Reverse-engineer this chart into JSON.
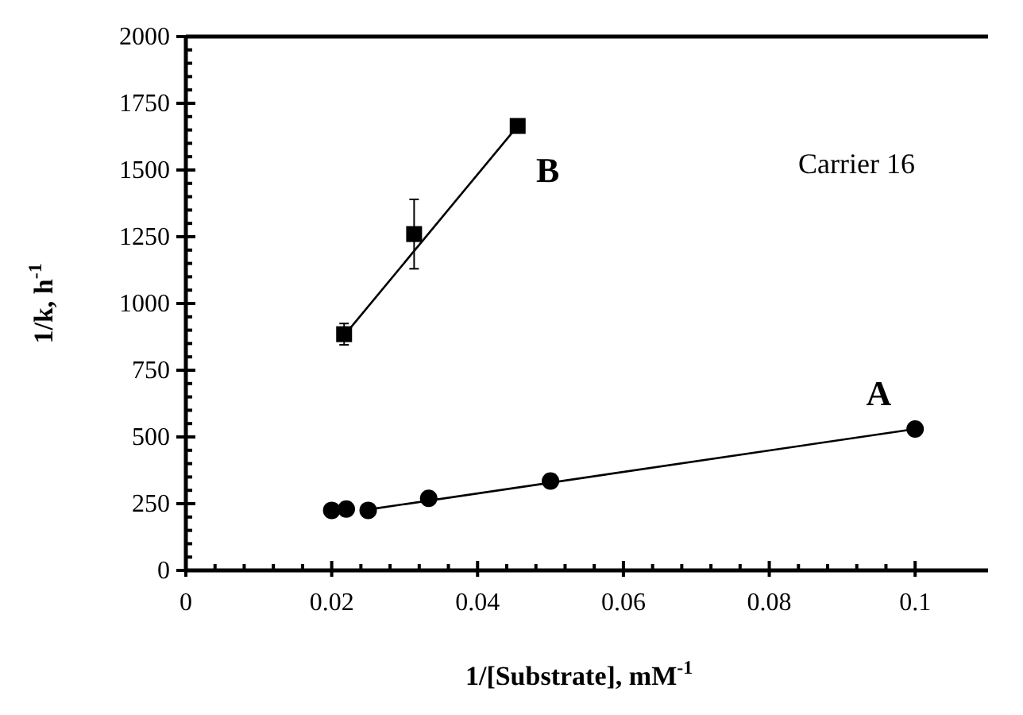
{
  "chart_data": {
    "type": "scatter",
    "xlabel": "1/[Substrate], mM$^{-1}$",
    "ylabel": "1/k, h$^{-1}$",
    "xlim": [
      0,
      0.11
    ],
    "ylim": [
      0,
      2000
    ],
    "xticks": [
      0,
      0.02,
      0.04,
      0.06,
      0.08,
      0.1
    ],
    "yticks": [
      0,
      250,
      500,
      750,
      1000,
      1250,
      1500,
      1750,
      2000
    ],
    "grid": false,
    "series": [
      {
        "name": "A",
        "color": "#000000",
        "marker": "circle",
        "x": [
          0.02,
          0.022,
          0.025,
          0.0333,
          0.05,
          0.1
        ],
        "values": [
          225,
          230,
          225,
          270,
          335,
          530
        ],
        "errors": [
          null,
          null,
          null,
          null,
          25,
          null
        ]
      },
      {
        "name": "B",
        "color": "#000000",
        "marker": "square",
        "x": [
          0.0217,
          0.0313,
          0.0455
        ],
        "values": [
          885,
          1260,
          1665
        ],
        "errors": [
          40,
          130,
          null
        ]
      },
      {
        "type": "line",
        "color": "#000000",
        "x": [
          0.025,
          0.1
        ],
        "values": [
          228,
          530
        ]
      },
      {
        "type": "line",
        "color": "#000000",
        "x": [
          0.0217,
          0.0455
        ],
        "values": [
          880,
          1665
        ]
      }
    ],
    "annotations": [
      "Carrier 16"
    ]
  }
}
